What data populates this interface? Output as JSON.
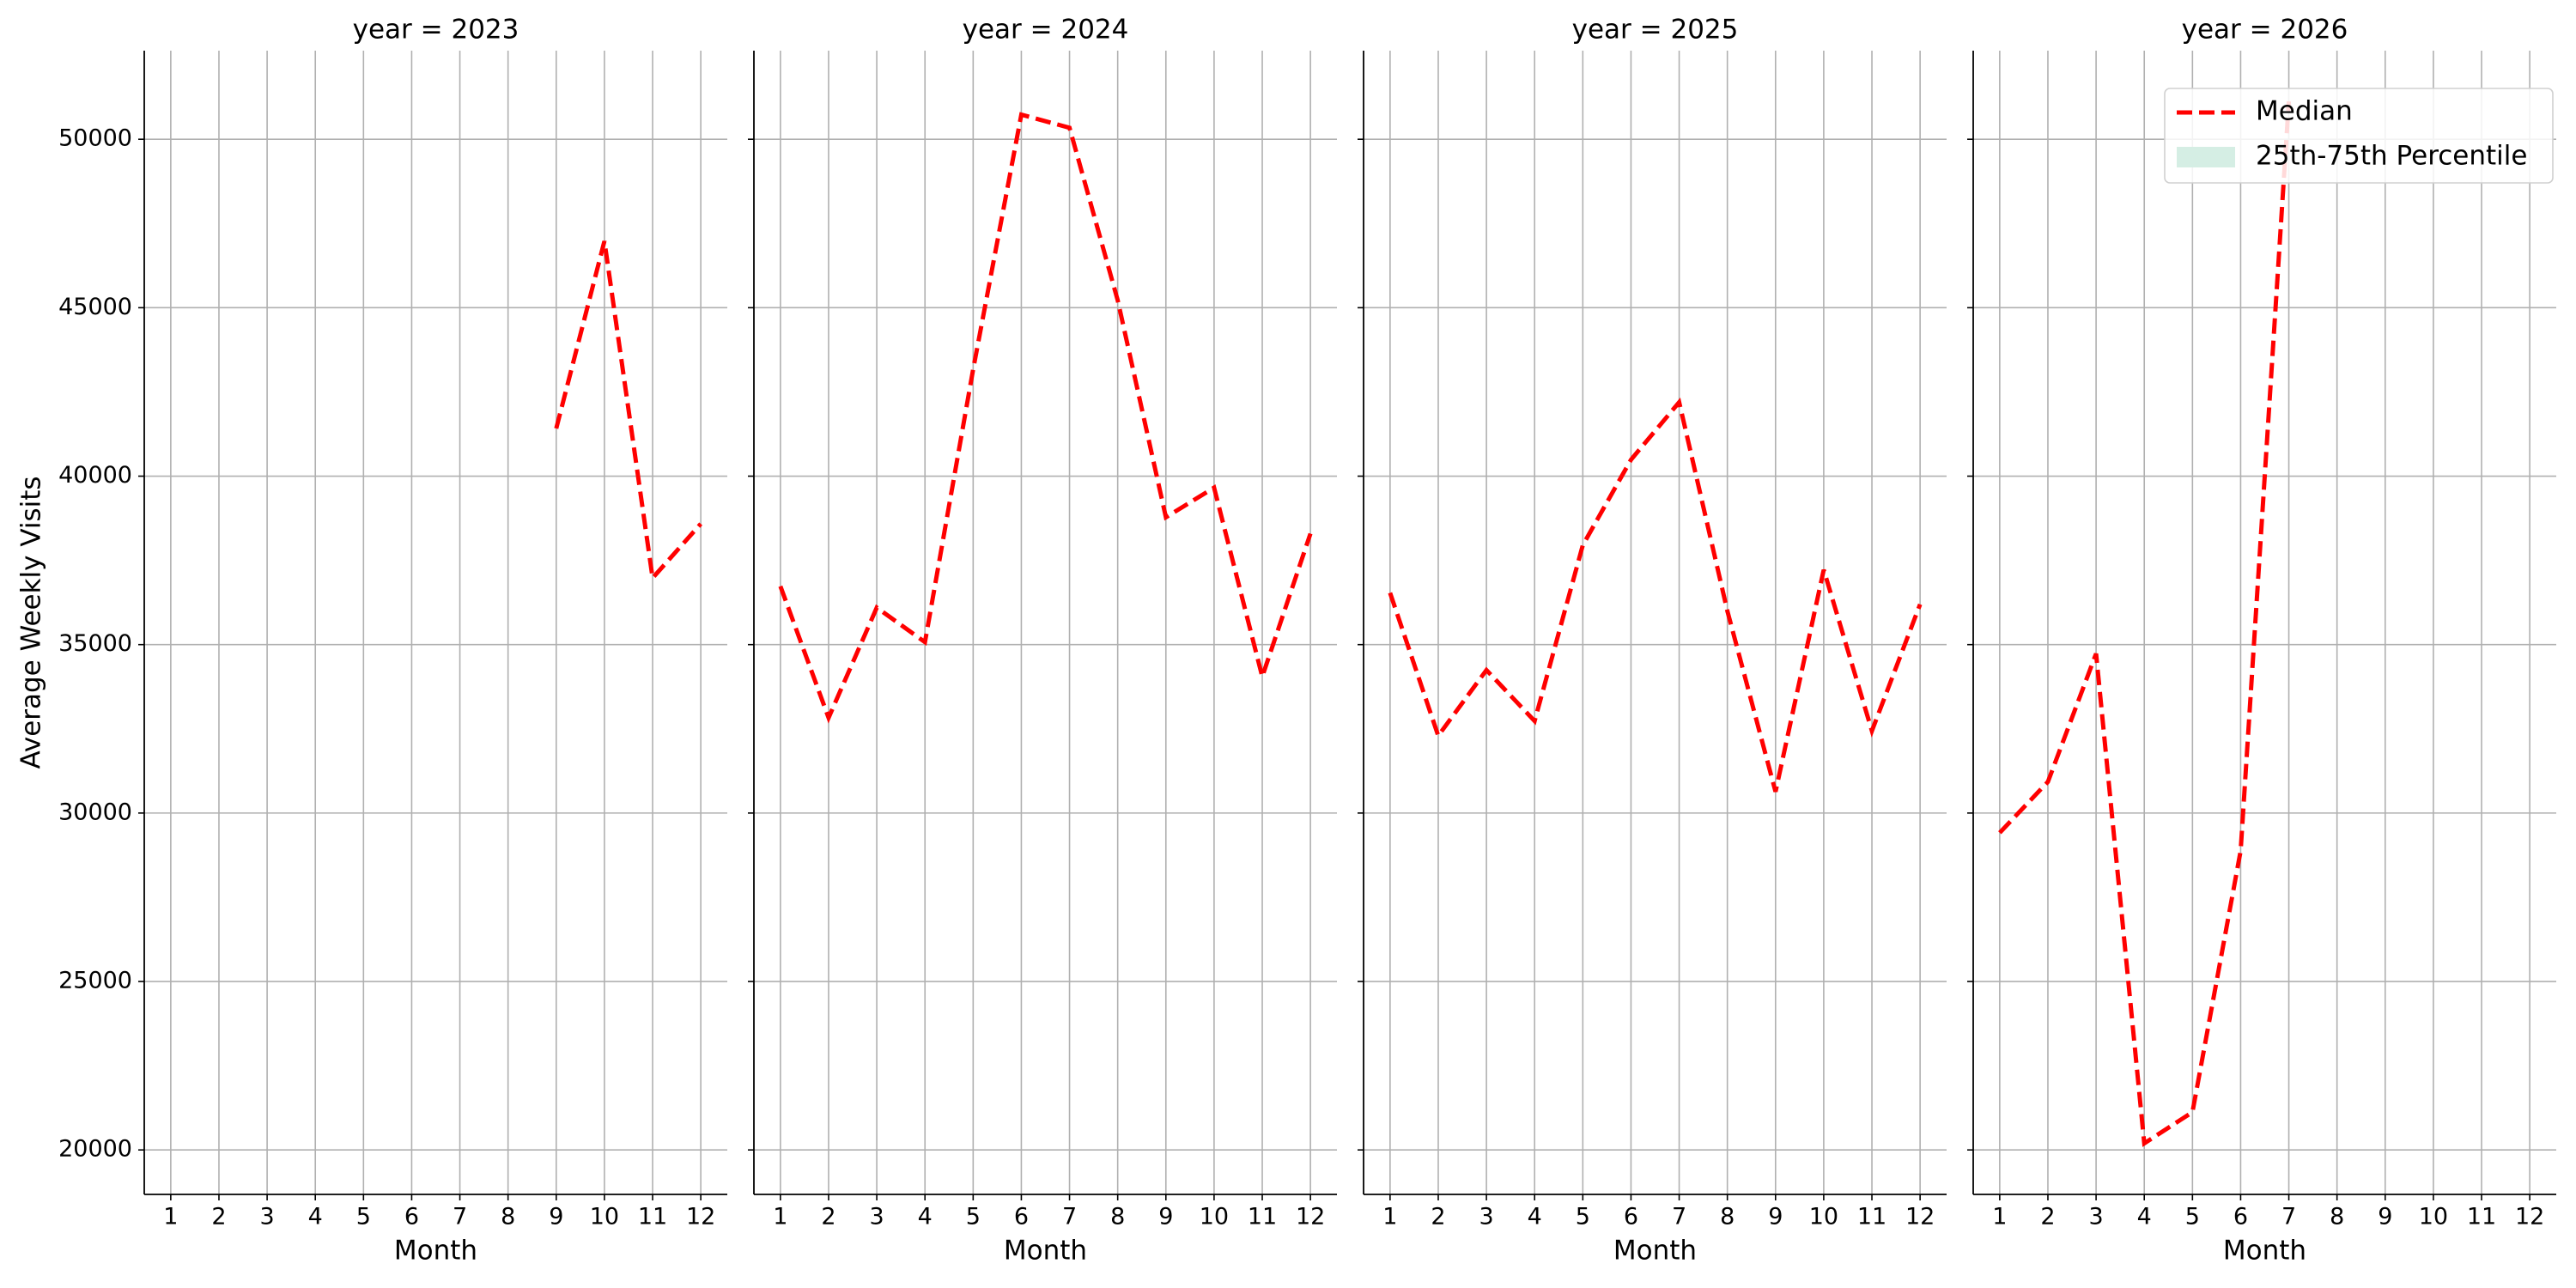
{
  "chart_data": [
    {
      "type": "line",
      "title": "year = 2023",
      "xlabel": "Month",
      "ylabel": "Average Weekly Visits",
      "x": [
        1,
        2,
        3,
        4,
        5,
        6,
        7,
        8,
        9,
        10,
        11,
        12
      ],
      "xlim": [
        0.45,
        12.55
      ],
      "xticks": [
        1,
        2,
        3,
        4,
        5,
        6,
        7,
        8,
        9,
        10,
        11,
        12
      ],
      "ylim": [
        18680,
        52630
      ],
      "yticks": [
        20000,
        25000,
        30000,
        35000,
        40000,
        45000,
        50000
      ],
      "grid": true,
      "series": [
        {
          "name": "Median",
          "color": "#ff0000",
          "linestyle": "dashed",
          "values": [
            null,
            null,
            null,
            null,
            null,
            null,
            null,
            null,
            41415,
            46976,
            36976,
            38585
          ]
        }
      ]
    },
    {
      "type": "line",
      "title": "year = 2024",
      "xlabel": "Month",
      "x": [
        1,
        2,
        3,
        4,
        5,
        6,
        7,
        8,
        9,
        10,
        11,
        12
      ],
      "xlim": [
        0.45,
        12.55
      ],
      "xticks": [
        1,
        2,
        3,
        4,
        5,
        6,
        7,
        8,
        9,
        10,
        11,
        12
      ],
      "ylim": [
        18680,
        52630
      ],
      "yticks": [
        20000,
        25000,
        30000,
        35000,
        40000,
        45000,
        50000
      ],
      "grid": true,
      "series": [
        {
          "name": "Median",
          "color": "#ff0000",
          "linestyle": "dashed",
          "values": [
            36732,
            32829,
            36098,
            35073,
            43171,
            50732,
            50341,
            45220,
            38780,
            39659,
            34049,
            38293
          ]
        }
      ]
    },
    {
      "type": "line",
      "title": "year = 2025",
      "xlabel": "Month",
      "x": [
        1,
        2,
        3,
        4,
        5,
        6,
        7,
        8,
        9,
        10,
        11,
        12
      ],
      "xlim": [
        0.45,
        12.55
      ],
      "xticks": [
        1,
        2,
        3,
        4,
        5,
        6,
        7,
        8,
        9,
        10,
        11,
        12
      ],
      "ylim": [
        18680,
        52630
      ],
      "yticks": [
        20000,
        25000,
        30000,
        35000,
        40000,
        45000,
        50000
      ],
      "grid": true,
      "series": [
        {
          "name": "Median",
          "color": "#ff0000",
          "linestyle": "dashed",
          "values": [
            36537,
            32293,
            34244,
            32732,
            37951,
            40488,
            42195,
            36000,
            30634,
            37220,
            32439,
            36195
          ]
        }
      ]
    },
    {
      "type": "line",
      "title": "year = 2026",
      "xlabel": "Month",
      "x": [
        1,
        2,
        3,
        4,
        5,
        6,
        7,
        8,
        9,
        10,
        11,
        12
      ],
      "xlim": [
        0.45,
        12.55
      ],
      "xticks": [
        1,
        2,
        3,
        4,
        5,
        6,
        7,
        8,
        9,
        10,
        11,
        12
      ],
      "ylim": [
        18680,
        52630
      ],
      "yticks": [
        20000,
        25000,
        30000,
        35000,
        40000,
        45000,
        50000
      ],
      "grid": true,
      "series": [
        {
          "name": "Median",
          "color": "#ff0000",
          "linestyle": "dashed",
          "values": [
            29415,
            30927,
            34732,
            20195,
            21122,
            28878,
            51122,
            null,
            null,
            null,
            null,
            null
          ]
        }
      ],
      "band": {
        "name": "25th-75th Percentile",
        "color": "#d5eee4"
      },
      "legend": "upper right"
    }
  ]
}
